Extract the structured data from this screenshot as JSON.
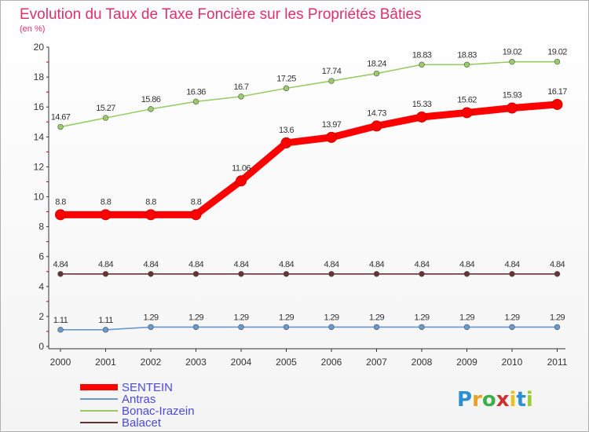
{
  "chart_data": {
    "type": "line",
    "title": "Evolution du Taux de Taxe Foncière sur les Propriétés Bâties",
    "unit_label": "(en %)",
    "xlabel": "",
    "ylabel": "(en %)",
    "ylim": [
      0,
      20
    ],
    "yticks": [
      "0",
      "2",
      "4",
      "6",
      "8",
      "10",
      "12",
      "14",
      "16",
      "18",
      "20"
    ],
    "ytick_values": [
      0,
      2,
      4,
      6,
      8,
      10,
      12,
      14,
      16,
      18,
      20
    ],
    "categories": [
      "2000",
      "2001",
      "2002",
      "2003",
      "2004",
      "2005",
      "2006",
      "2007",
      "2008",
      "2009",
      "2010",
      "2011"
    ],
    "grid": false,
    "legend_position": "bottom-left",
    "series": [
      {
        "name": "SENTEIN",
        "color": "#ff0000",
        "values": [
          8.8,
          8.8,
          8.8,
          8.8,
          11.06,
          13.6,
          13.97,
          14.73,
          15.33,
          15.62,
          15.93,
          16.17
        ],
        "labels": [
          "8.8",
          "8.8",
          "8.8",
          "8.8",
          "11.06",
          "13.6",
          "13.97",
          "14.73",
          "15.33",
          "15.62",
          "15.93",
          "16.17"
        ]
      },
      {
        "name": "Antras",
        "color": "#6699cc",
        "values": [
          1.11,
          1.11,
          1.29,
          1.29,
          1.29,
          1.29,
          1.29,
          1.29,
          1.29,
          1.29,
          1.29,
          1.29
        ],
        "labels": [
          "1.11",
          "1.11",
          "1.29",
          "1.29",
          "1.29",
          "1.29",
          "1.29",
          "1.29",
          "1.29",
          "1.29",
          "1.29",
          "1.29"
        ]
      },
      {
        "name": "Bonac-Irazein",
        "color": "#99cc66",
        "values": [
          14.67,
          15.27,
          15.86,
          16.36,
          16.7,
          17.25,
          17.74,
          18.24,
          18.83,
          18.83,
          19.02,
          19.02
        ],
        "labels": [
          "14.67",
          "15.27",
          "15.86",
          "16.36",
          "16.7",
          "17.25",
          "17.74",
          "18.24",
          "18.83",
          "18.83",
          "19.02",
          "19.02"
        ]
      },
      {
        "name": "Balacet",
        "color": "#663333",
        "values": [
          4.84,
          4.84,
          4.84,
          4.84,
          4.84,
          4.84,
          4.84,
          4.84,
          4.84,
          4.84,
          4.84,
          4.84
        ],
        "labels": [
          "4.84",
          "4.84",
          "4.84",
          "4.84",
          "4.84",
          "4.84",
          "4.84",
          "4.84",
          "4.84",
          "4.84",
          "4.84",
          "4.84"
        ]
      }
    ]
  },
  "logo": {
    "letters": [
      "P",
      "r",
      "o",
      "x",
      "i",
      "t",
      "i"
    ],
    "colors": [
      "#2e8fd0",
      "#e8a020",
      "#3fae4a",
      "#d03030",
      "#e8c020",
      "#2e8fd0",
      "#9acd32"
    ]
  }
}
